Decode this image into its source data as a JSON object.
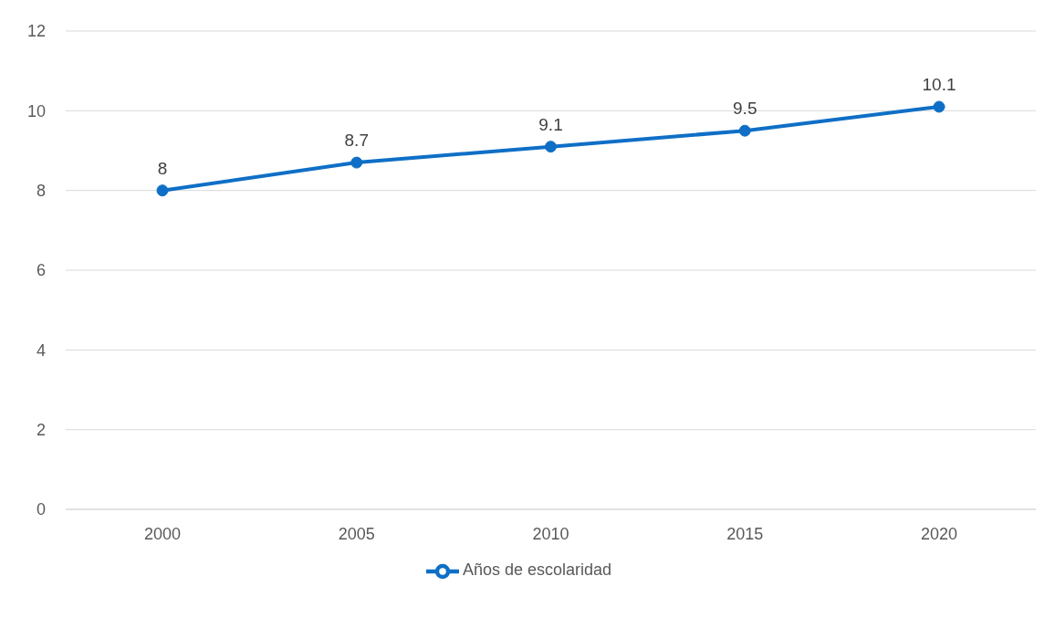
{
  "chart_data": {
    "type": "line",
    "categories": [
      "2000",
      "2005",
      "2010",
      "2015",
      "2020"
    ],
    "series": [
      {
        "name": "Años de escolaridad",
        "color": "#0f6fc6",
        "values": [
          8,
          8.7,
          9.1,
          9.5,
          10.1
        ]
      }
    ],
    "ylim": [
      0,
      12
    ],
    "yticks": [
      0,
      2,
      4,
      6,
      8,
      10,
      12
    ],
    "grid": "y",
    "legend": "bottom",
    "marker": "circle",
    "line_style": "solid",
    "data_labels": true
  }
}
